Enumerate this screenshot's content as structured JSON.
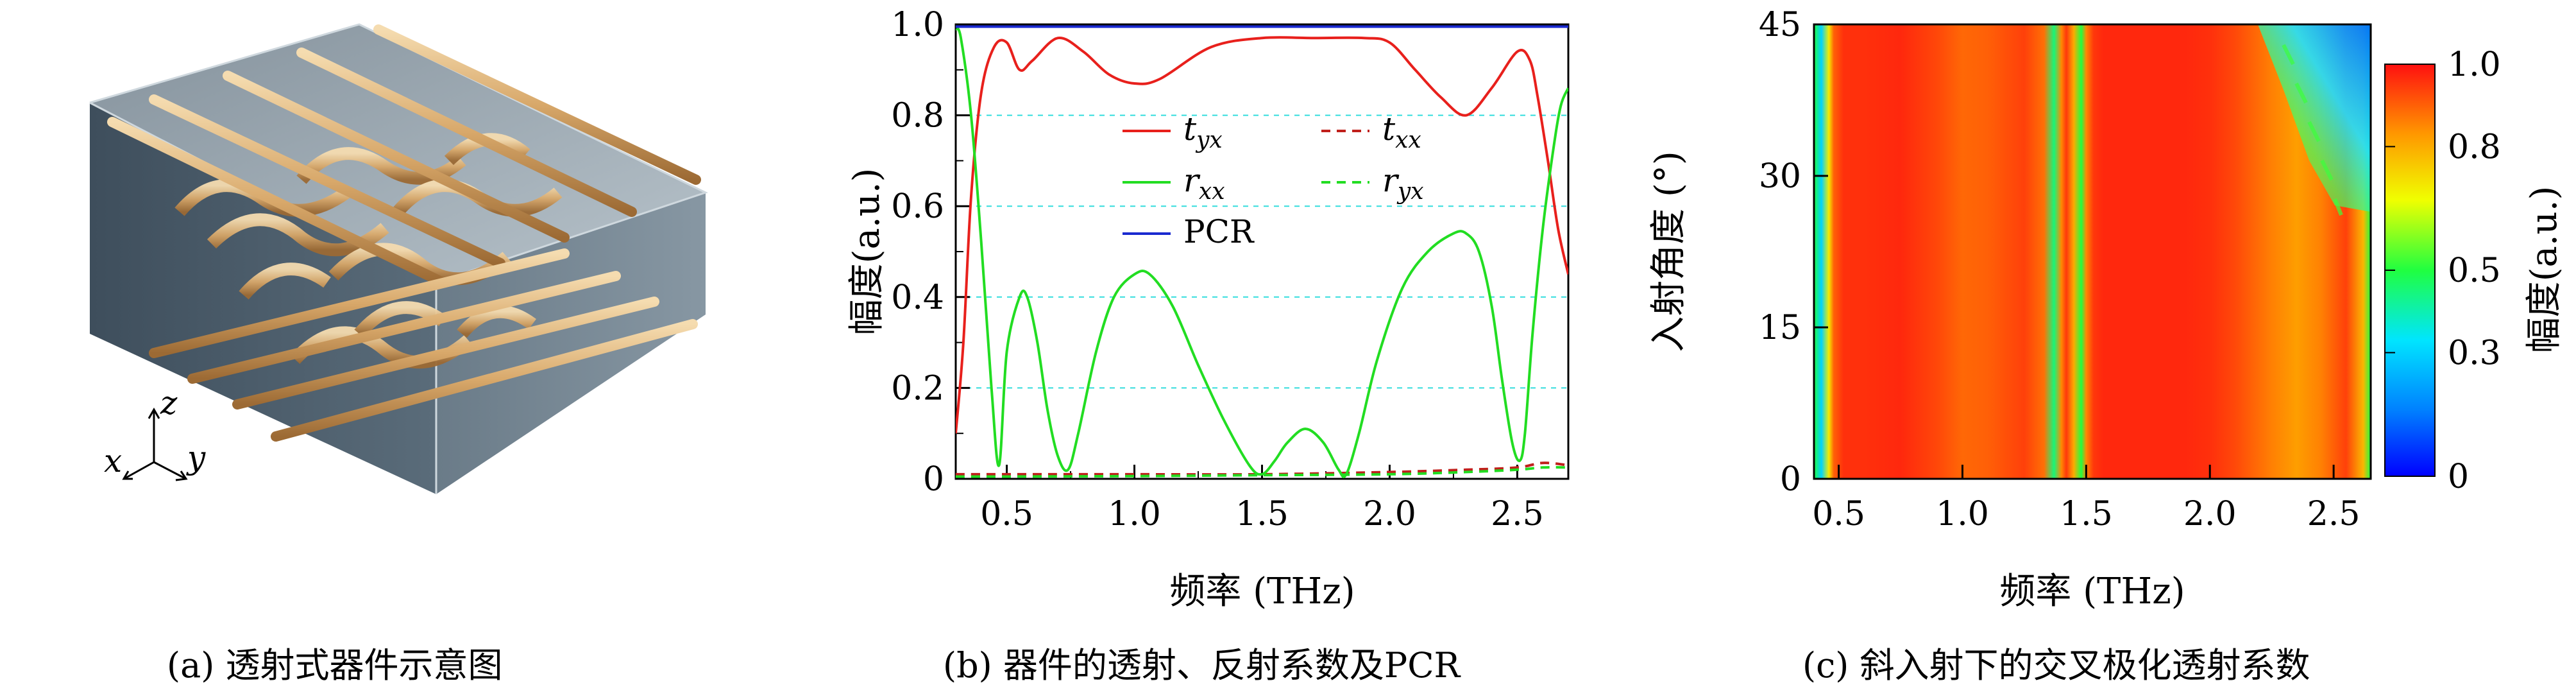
{
  "panel_a": {
    "caption": "(a) 透射式器件示意图",
    "axes": {
      "x": "x",
      "y": "y",
      "z": "z"
    }
  },
  "panel_b": {
    "caption": "(b) 器件的透射、反射系数及PCR",
    "colors": {
      "t_yx": "#e8201c",
      "t_xx": "#c0201c",
      "r_xx": "#22dd22",
      "r_yx": "#22dd22",
      "PCR": "#1a2ad0",
      "grid": "#33dddd"
    }
  },
  "panel_c": {
    "caption": "(c) 斜入射下的交叉极化透射系数",
    "colorbar_label": "幅度(a.u.)",
    "colorbar_ticks": [
      "1.0",
      "0.8",
      "0.5",
      "0.3",
      "0"
    ]
  },
  "chart_data": [
    {
      "type": "line",
      "xlabel": "频率 (THz)",
      "ylabel": "幅度(a.u.)",
      "xlim": [
        0.3,
        2.7
      ],
      "ylim": [
        0,
        1.0
      ],
      "xticks": [
        "0.5",
        "1.0",
        "1.5",
        "2.0",
        "2.5"
      ],
      "yticks": [
        "0",
        "0.2",
        "0.4",
        "0.6",
        "0.8",
        "1.0"
      ],
      "grid": "dashed horizontal",
      "legend": "upper center",
      "series": [
        {
          "name": "t_yx",
          "label_main": "t",
          "label_sub": "yx",
          "style": "solid",
          "x": [
            0.3,
            0.33,
            0.36,
            0.4,
            0.45,
            0.5,
            0.55,
            0.6,
            0.7,
            0.8,
            0.9,
            1.0,
            1.1,
            1.3,
            1.5,
            1.7,
            1.9,
            2.0,
            2.1,
            2.2,
            2.3,
            2.4,
            2.5,
            2.55,
            2.58,
            2.62,
            2.66,
            2.7
          ],
          "y": [
            0.1,
            0.3,
            0.62,
            0.85,
            0.95,
            0.96,
            0.9,
            0.92,
            0.97,
            0.94,
            0.89,
            0.87,
            0.88,
            0.95,
            0.97,
            0.97,
            0.97,
            0.96,
            0.9,
            0.84,
            0.8,
            0.86,
            0.94,
            0.92,
            0.84,
            0.7,
            0.55,
            0.45
          ]
        },
        {
          "name": "t_xx",
          "label_main": "t",
          "label_sub": "xx",
          "style": "dashed",
          "x": [
            0.3,
            0.5,
            1.0,
            1.5,
            2.0,
            2.3,
            2.5,
            2.6,
            2.7
          ],
          "y": [
            0.01,
            0.01,
            0.01,
            0.01,
            0.015,
            0.02,
            0.025,
            0.035,
            0.03
          ]
        },
        {
          "name": "r_xx",
          "label_main": "r",
          "label_sub": "xx",
          "style": "solid",
          "x": [
            0.3,
            0.32,
            0.36,
            0.4,
            0.44,
            0.47,
            0.5,
            0.55,
            0.58,
            0.62,
            0.66,
            0.7,
            0.74,
            0.78,
            0.85,
            0.92,
            1.0,
            1.06,
            1.15,
            1.25,
            1.35,
            1.45,
            1.5,
            1.55,
            1.6,
            1.67,
            1.74,
            1.8,
            1.83,
            1.88,
            1.95,
            2.05,
            2.15,
            2.25,
            2.3,
            2.35,
            2.4,
            2.44,
            2.48,
            2.51,
            2.53,
            2.56,
            2.6,
            2.64,
            2.67,
            2.7
          ],
          "y": [
            0.99,
            0.97,
            0.8,
            0.52,
            0.2,
            0.03,
            0.28,
            0.4,
            0.4,
            0.3,
            0.15,
            0.05,
            0.02,
            0.1,
            0.28,
            0.4,
            0.45,
            0.45,
            0.38,
            0.25,
            0.13,
            0.03,
            0.01,
            0.04,
            0.08,
            0.11,
            0.08,
            0.02,
            0.01,
            0.1,
            0.26,
            0.42,
            0.5,
            0.54,
            0.54,
            0.5,
            0.38,
            0.22,
            0.08,
            0.04,
            0.1,
            0.32,
            0.55,
            0.72,
            0.82,
            0.86
          ]
        },
        {
          "name": "r_yx",
          "label_main": "r",
          "label_sub": "yx",
          "style": "dashed",
          "x": [
            0.3,
            0.5,
            1.0,
            1.5,
            2.0,
            2.3,
            2.5,
            2.6,
            2.7
          ],
          "y": [
            0.005,
            0.005,
            0.006,
            0.008,
            0.01,
            0.015,
            0.02,
            0.025,
            0.025
          ]
        },
        {
          "name": "PCR",
          "label_main": "PCR",
          "label_sub": "",
          "style": "solid",
          "x": [
            0.3,
            0.7,
            1.0,
            1.5,
            2.0,
            2.5,
            2.7
          ],
          "y": [
            0.995,
            0.995,
            0.995,
            0.995,
            0.995,
            0.995,
            0.995
          ]
        }
      ]
    },
    {
      "type": "heatmap",
      "xlabel": "频率 (THz)",
      "ylabel": "入射角度 (°)",
      "xlim": [
        0.4,
        2.65
      ],
      "ylim": [
        0,
        45
      ],
      "xticks": [
        "0.5",
        "1.0",
        "1.5",
        "2.0",
        "2.5"
      ],
      "yticks": [
        "0",
        "15",
        "30",
        "45"
      ],
      "colorbar": {
        "label": "幅度(a.u.)",
        "range": [
          0,
          1.0
        ]
      },
      "profile_x": [
        0.4,
        0.43,
        0.46,
        0.48,
        0.52,
        0.6,
        0.75,
        0.9,
        1.0,
        1.1,
        1.25,
        1.33,
        1.37,
        1.4,
        1.42,
        1.45,
        1.48,
        1.5,
        1.53,
        1.57,
        1.7,
        1.9,
        2.0,
        2.1,
        2.25,
        2.35,
        2.45,
        2.55,
        2.62,
        2.65
      ],
      "profile_values": [
        0.5,
        0.3,
        0.7,
        0.9,
        0.96,
        0.96,
        0.97,
        0.93,
        0.89,
        0.9,
        0.94,
        0.88,
        0.45,
        0.85,
        0.95,
        0.8,
        0.5,
        0.85,
        0.95,
        0.97,
        0.97,
        0.97,
        0.96,
        0.93,
        0.86,
        0.82,
        0.86,
        0.94,
        0.78,
        0.5
      ]
    }
  ]
}
